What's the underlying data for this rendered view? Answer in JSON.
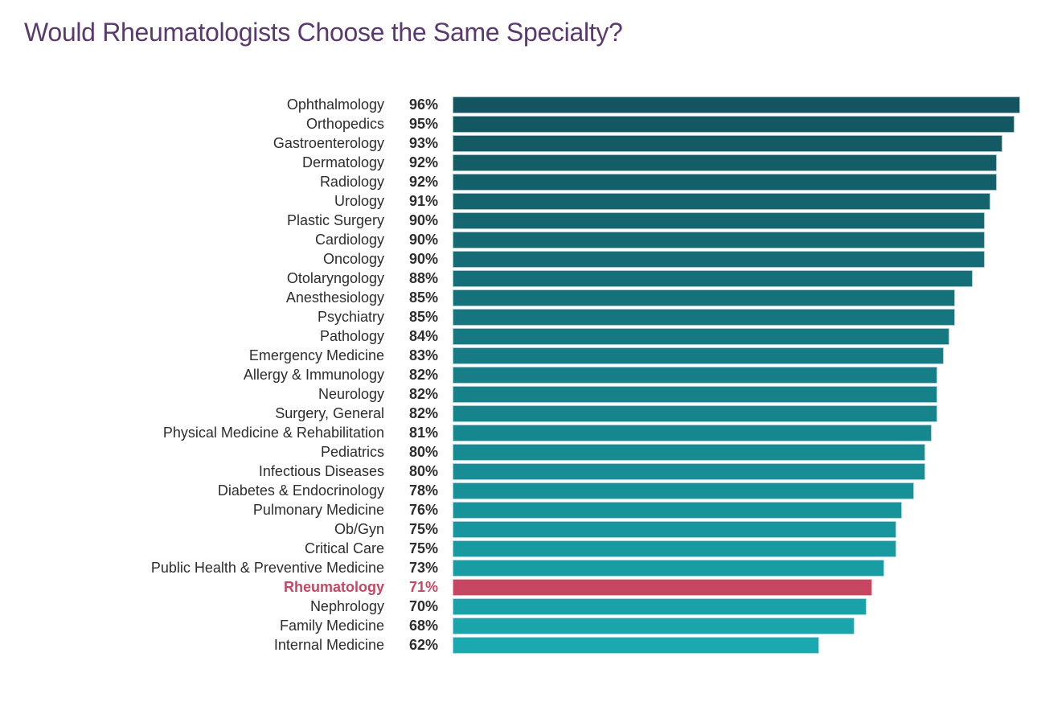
{
  "title": "Would Rheumatologists Choose the Same Specialty?",
  "colors": {
    "title": "#5A3A6E",
    "label": "#2D2D2D",
    "bar_gradient_top": "#12545F",
    "bar_gradient_bottom": "#1BA8AE",
    "highlight": "#C54762",
    "background": "#FFFFFF"
  },
  "chart_data": {
    "type": "bar",
    "orientation": "horizontal",
    "title": "Would Rheumatologists Choose the Same Specialty?",
    "unit": "%",
    "xlim": [
      0,
      100
    ],
    "grid": false,
    "legend": false,
    "value_label_position": "left-of-bar",
    "highlight_category": "Rheumatology",
    "categories": [
      "Ophthalmology",
      "Orthopedics",
      "Gastroenterology",
      "Dermatology",
      "Radiology",
      "Urology",
      "Plastic Surgery",
      "Cardiology",
      "Oncology",
      "Otolaryngology",
      "Anesthesiology",
      "Psychiatry",
      "Pathology",
      "Emergency Medicine",
      "Allergy & Immunology",
      "Neurology",
      "Surgery, General",
      "Physical Medicine & Rehabilitation",
      "Pediatrics",
      "Infectious Diseases",
      "Diabetes & Endocrinology",
      "Pulmonary Medicine",
      "Ob/Gyn",
      "Critical Care",
      "Public Health & Preventive Medicine",
      "Rheumatology",
      "Nephrology",
      "Family Medicine",
      "Internal Medicine"
    ],
    "values": [
      96,
      95,
      93,
      92,
      92,
      91,
      90,
      90,
      90,
      88,
      85,
      85,
      84,
      83,
      82,
      82,
      82,
      81,
      80,
      80,
      78,
      76,
      75,
      75,
      73,
      71,
      70,
      68,
      62
    ]
  }
}
